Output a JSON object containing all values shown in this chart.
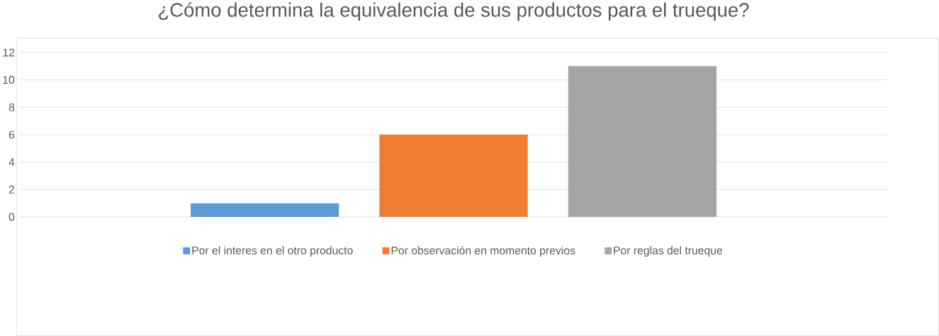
{
  "chart_data": {
    "type": "bar",
    "title": "¿Cómo determina la equivalencia de sus productos para el trueque?",
    "categories": [
      null
    ],
    "series": [
      {
        "name": "Por el interes en el otro producto",
        "color": "#5b9bd5",
        "values": [
          1
        ]
      },
      {
        "name": "Por observación en momento previos",
        "color": "#ed7d31",
        "values": [
          6
        ]
      },
      {
        "name": "Por reglas del trueque",
        "color": "#a5a5a5",
        "values": [
          11
        ]
      }
    ],
    "ylim": [
      0,
      12
    ],
    "yticks": [
      0,
      2,
      4,
      6,
      8,
      10,
      12
    ],
    "grid": "y",
    "legend": "bottom"
  }
}
